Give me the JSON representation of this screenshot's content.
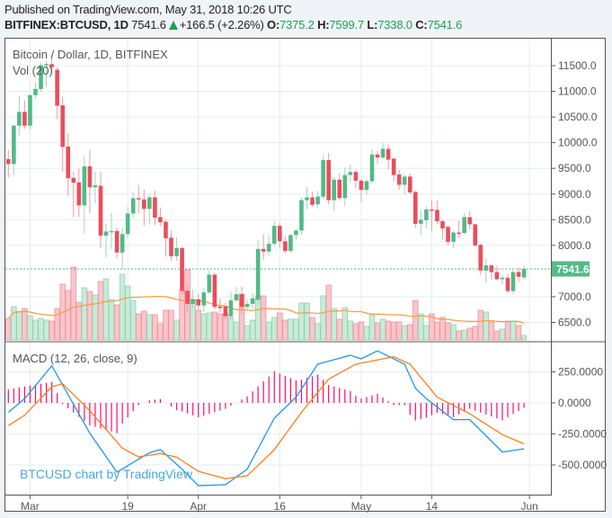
{
  "header": {
    "published": "Published on TradingView.com, May 31, 2018 10:26 UTC",
    "symbol": "BITFINEX:BTCUSD, 1D",
    "last": "7541.6",
    "change": "+166.5 (+2.26%)",
    "o_label": "O:",
    "o_value": "7375.2",
    "h_label": "H:",
    "h_value": "7599.7",
    "l_label": "L:",
    "l_value": "7338.0",
    "c_label": "C:",
    "c_value": "7541.6",
    "direction_icon": "up-triangle-icon"
  },
  "chart_data": {
    "type": "candlestick",
    "title": "Bitcoin / Dollar, 1D, BITFINEX",
    "volume_label": "Vol (20)",
    "macd_label": "MACD (12, 26, close, 9)",
    "watermark": "BTCUSD chart by TradingView",
    "last_price_label": "7541.6",
    "colors": {
      "up": "#53b987",
      "down": "#eb4d5c",
      "vol_up": "#c9ebd9",
      "vol_down": "#f9c6cb",
      "vol_ma": "#ff9a3c",
      "macd": "#2196f3",
      "signal": "#ff7f1e",
      "histogram": "#ff0a6c",
      "grid": "#e3ecf2"
    },
    "price_axis": {
      "ylim": [
        6200,
        11750
      ],
      "ticks": [
        "11500.0",
        "11000.0",
        "10500.0",
        "10000.0",
        "9500.0",
        "9000.0",
        "8500.0",
        "8000.0",
        "7000.0",
        "6500.0"
      ]
    },
    "macd_axis": {
      "ylim": [
        -740,
        500
      ],
      "ticks": [
        "250.0000",
        "0.0000",
        "-250.0000",
        "-500.0000"
      ]
    },
    "time_axis": {
      "ticks": [
        {
          "label": "Mar",
          "date": "2018-03-01"
        },
        {
          "label": "19",
          "date": "2018-03-19"
        },
        {
          "label": "Apr",
          "date": "2018-04-01"
        },
        {
          "label": "16",
          "date": "2018-04-16"
        },
        {
          "label": "May",
          "date": "2018-05-01"
        },
        {
          "label": "14",
          "date": "2018-05-14"
        },
        {
          "label": "Jun",
          "date": "2018-06-01"
        }
      ]
    },
    "volume_ma_period": 20,
    "candle_fields": [
      "date",
      "open",
      "high",
      "low",
      "close",
      "volume_relative"
    ],
    "candles": [
      [
        "2018-02-25",
        9680,
        9860,
        9320,
        9586,
        24
      ],
      [
        "2018-02-26",
        9586,
        10340,
        9370,
        10331,
        37
      ],
      [
        "2018-02-27",
        10331,
        10915,
        10145,
        10600,
        32
      ],
      [
        "2018-02-28",
        10600,
        10820,
        10270,
        10331,
        35
      ],
      [
        "2018-03-01",
        10331,
        10940,
        10250,
        10925,
        27
      ],
      [
        "2018-03-02",
        10925,
        11180,
        10850,
        11045,
        22
      ],
      [
        "2018-03-03",
        11045,
        11560,
        10980,
        11510,
        24
      ],
      [
        "2018-03-04",
        11510,
        11590,
        11090,
        11530,
        22
      ],
      [
        "2018-03-05",
        11530,
        11700,
        11350,
        11470,
        21
      ],
      [
        "2018-03-06",
        11420,
        11470,
        10460,
        10720,
        35
      ],
      [
        "2018-03-07",
        10727,
        10900,
        9430,
        9918,
        62
      ],
      [
        "2018-03-08",
        9924,
        10180,
        8960,
        9307,
        55
      ],
      [
        "2018-03-09",
        9313,
        9440,
        8540,
        9220,
        81
      ],
      [
        "2018-03-10",
        9226,
        9490,
        8550,
        8778,
        42
      ],
      [
        "2018-03-11",
        8778,
        9750,
        8230,
        9540,
        58
      ],
      [
        "2018-03-12",
        9540,
        9855,
        8630,
        9132,
        54
      ],
      [
        "2018-03-13",
        9132,
        9440,
        8820,
        9170,
        50
      ],
      [
        "2018-03-14",
        9160,
        9440,
        7940,
        8190,
        65
      ],
      [
        "2018-03-15",
        8190,
        8420,
        7760,
        8270,
        68
      ],
      [
        "2018-03-16",
        8270,
        8630,
        7930,
        8280,
        45
      ],
      [
        "2018-03-17",
        8280,
        8350,
        7750,
        7860,
        39
      ],
      [
        "2018-03-18",
        7860,
        8340,
        7530,
        8220,
        73
      ],
      [
        "2018-03-19",
        8220,
        8750,
        8150,
        8620,
        60
      ],
      [
        "2018-03-20",
        8620,
        9040,
        8540,
        8920,
        44
      ],
      [
        "2018-03-21",
        8920,
        9180,
        8630,
        8895,
        29
      ],
      [
        "2018-03-22",
        8895,
        9090,
        8380,
        8710,
        32
      ],
      [
        "2018-03-23",
        8710,
        8990,
        8410,
        8935,
        28
      ],
      [
        "2018-03-24",
        8935,
        9060,
        8390,
        8540,
        28
      ],
      [
        "2018-03-25",
        8550,
        8740,
        8380,
        8450,
        18
      ],
      [
        "2018-03-26",
        8460,
        8510,
        7780,
        8140,
        33
      ],
      [
        "2018-03-27",
        8150,
        8290,
        7700,
        7790,
        33
      ],
      [
        "2018-03-28",
        7790,
        8160,
        7700,
        7950,
        22
      ],
      [
        "2018-03-29",
        7950,
        7970,
        7040,
        7115,
        55
      ],
      [
        "2018-03-30",
        7115,
        7240,
        6700,
        6860,
        78
      ],
      [
        "2018-03-31",
        6860,
        7140,
        6780,
        6950,
        44
      ],
      [
        "2018-04-01",
        6950,
        7050,
        6750,
        6830,
        33
      ],
      [
        "2018-04-02",
        6830,
        7170,
        6700,
        7085,
        29
      ],
      [
        "2018-04-03",
        7085,
        7520,
        7050,
        7430,
        30
      ],
      [
        "2018-04-04",
        7430,
        7470,
        6750,
        6800,
        31
      ],
      [
        "2018-04-05",
        6810,
        6960,
        6700,
        6780,
        29
      ],
      [
        "2018-04-06",
        6810,
        6890,
        6560,
        6620,
        29
      ],
      [
        "2018-04-07",
        6620,
        7100,
        6560,
        6930,
        25
      ],
      [
        "2018-04-08",
        6930,
        7200,
        6900,
        7050,
        20
      ],
      [
        "2018-04-09",
        7050,
        7200,
        6650,
        6800,
        51
      ],
      [
        "2018-04-10",
        6800,
        6950,
        6720,
        6860,
        16
      ],
      [
        "2018-04-11",
        6860,
        7070,
        6770,
        6970,
        22
      ],
      [
        "2018-04-12",
        6940,
        8100,
        6850,
        7930,
        49
      ],
      [
        "2018-04-13",
        7930,
        8220,
        7720,
        7880,
        49
      ],
      [
        "2018-04-14",
        7880,
        8210,
        7800,
        8030,
        20
      ],
      [
        "2018-04-15",
        8030,
        8480,
        7990,
        8380,
        25
      ],
      [
        "2018-04-16",
        8380,
        8440,
        7950,
        8080,
        30
      ],
      [
        "2018-04-17",
        8080,
        8170,
        7840,
        7890,
        22
      ],
      [
        "2018-04-18",
        7890,
        8230,
        7860,
        8200,
        23
      ],
      [
        "2018-04-19",
        8200,
        8330,
        8110,
        8290,
        23
      ],
      [
        "2018-04-20",
        8290,
        8930,
        8200,
        8880,
        41
      ],
      [
        "2018-04-21",
        8880,
        9140,
        8700,
        8935,
        41
      ],
      [
        "2018-04-22",
        8935,
        9050,
        8750,
        8790,
        25
      ],
      [
        "2018-04-23",
        8800,
        9050,
        8720,
        8950,
        18
      ],
      [
        "2018-04-24",
        8950,
        9750,
        8900,
        9660,
        49
      ],
      [
        "2018-04-25",
        9660,
        9800,
        8800,
        8880,
        61
      ],
      [
        "2018-04-26",
        8880,
        9330,
        8660,
        9280,
        35
      ],
      [
        "2018-04-27",
        9280,
        9400,
        8880,
        8920,
        23
      ],
      [
        "2018-04-28",
        8920,
        9520,
        8760,
        9370,
        36
      ],
      [
        "2018-04-29",
        9370,
        9580,
        9230,
        9430,
        21
      ],
      [
        "2018-04-30",
        9430,
        9480,
        9110,
        9260,
        18
      ],
      [
        "2018-05-01",
        9260,
        9290,
        8840,
        9080,
        20
      ],
      [
        "2018-05-02",
        9080,
        9280,
        8990,
        9250,
        15
      ],
      [
        "2018-05-03",
        9250,
        9870,
        9200,
        9770,
        28
      ],
      [
        "2018-05-04",
        9770,
        9840,
        9580,
        9710,
        19
      ],
      [
        "2018-05-05",
        9710,
        9990,
        9690,
        9880,
        23
      ],
      [
        "2018-05-06",
        9880,
        9970,
        9480,
        9670,
        21
      ],
      [
        "2018-05-07",
        9690,
        9700,
        9240,
        9370,
        20
      ],
      [
        "2018-05-08",
        9380,
        9470,
        9080,
        9180,
        20
      ],
      [
        "2018-05-09",
        9180,
        9380,
        9000,
        9340,
        16
      ],
      [
        "2018-05-10",
        9340,
        9400,
        9000,
        9030,
        17
      ],
      [
        "2018-05-11",
        9040,
        9060,
        8340,
        8420,
        44
      ],
      [
        "2018-05-12",
        8420,
        8690,
        8200,
        8500,
        29
      ],
      [
        "2018-05-13",
        8490,
        8760,
        8330,
        8700,
        16
      ],
      [
        "2018-05-14",
        8700,
        8890,
        8280,
        8680,
        29
      ],
      [
        "2018-05-15",
        8690,
        8870,
        8420,
        8470,
        20
      ],
      [
        "2018-05-16",
        8470,
        8500,
        8120,
        8330,
        25
      ],
      [
        "2018-05-17",
        8360,
        8380,
        8000,
        8070,
        19
      ],
      [
        "2018-05-18",
        8070,
        8280,
        7950,
        8250,
        17
      ],
      [
        "2018-05-19",
        8250,
        8480,
        8140,
        8230,
        10
      ],
      [
        "2018-05-20",
        8240,
        8620,
        8230,
        8550,
        11
      ],
      [
        "2018-05-21",
        8550,
        8660,
        8310,
        8410,
        13
      ],
      [
        "2018-05-22",
        8410,
        8420,
        7980,
        8000,
        15
      ],
      [
        "2018-05-23",
        8010,
        8030,
        7420,
        7510,
        33
      ],
      [
        "2018-05-24",
        7510,
        7740,
        7270,
        7610,
        31
      ],
      [
        "2018-05-25",
        7610,
        7630,
        7330,
        7480,
        20
      ],
      [
        "2018-05-26",
        7480,
        7600,
        7320,
        7340,
        10
      ],
      [
        "2018-05-27",
        7340,
        7430,
        7230,
        7370,
        12
      ],
      [
        "2018-05-28",
        7370,
        7440,
        7070,
        7110,
        21
      ],
      [
        "2018-05-29",
        7110,
        7520,
        7050,
        7480,
        21
      ],
      [
        "2018-05-30",
        7480,
        7560,
        7290,
        7390,
        16
      ],
      [
        "2018-05-31",
        7375.2,
        7599.7,
        7338.0,
        7541.6,
        5
      ]
    ],
    "macd_line": [
      [
        "2018-02-25",
        -75
      ],
      [
        "2018-02-28",
        34
      ],
      [
        "2018-03-05",
        299
      ],
      [
        "2018-03-12",
        -244
      ],
      [
        "2018-03-17",
        -558
      ],
      [
        "2018-03-23",
        -401
      ],
      [
        "2018-03-25",
        -377
      ],
      [
        "2018-03-29",
        -534
      ],
      [
        "2018-04-01",
        -667
      ],
      [
        "2018-04-06",
        -659
      ],
      [
        "2018-04-10",
        -534
      ],
      [
        "2018-04-15",
        -123
      ],
      [
        "2018-04-19",
        46
      ],
      [
        "2018-04-23",
        312
      ],
      [
        "2018-04-29",
        384
      ],
      [
        "2018-05-01",
        355
      ],
      [
        "2018-05-04",
        420
      ],
      [
        "2018-05-09",
        312
      ],
      [
        "2018-05-11",
        118
      ],
      [
        "2018-05-13",
        34
      ],
      [
        "2018-05-18",
        -135
      ],
      [
        "2018-05-21",
        -135
      ],
      [
        "2018-05-27",
        -396
      ],
      [
        "2018-05-31",
        -370
      ]
    ],
    "signal_line": [
      [
        "2018-02-25",
        -183
      ],
      [
        "2018-02-28",
        -99
      ],
      [
        "2018-03-05",
        130
      ],
      [
        "2018-03-07",
        154
      ],
      [
        "2018-03-12",
        -63
      ],
      [
        "2018-03-18",
        -365
      ],
      [
        "2018-03-21",
        -435
      ],
      [
        "2018-03-25",
        -408
      ],
      [
        "2018-03-28",
        -437
      ],
      [
        "2018-04-01",
        -551
      ],
      [
        "2018-04-06",
        -611
      ],
      [
        "2018-04-10",
        -587
      ],
      [
        "2018-04-15",
        -377
      ],
      [
        "2018-04-20",
        -75
      ],
      [
        "2018-04-25",
        191
      ],
      [
        "2018-04-30",
        312
      ],
      [
        "2018-05-07",
        372
      ],
      [
        "2018-05-10",
        312
      ],
      [
        "2018-05-15",
        46
      ],
      [
        "2018-05-21",
        -87
      ],
      [
        "2018-05-27",
        -256
      ],
      [
        "2018-05-31",
        -330
      ]
    ]
  }
}
